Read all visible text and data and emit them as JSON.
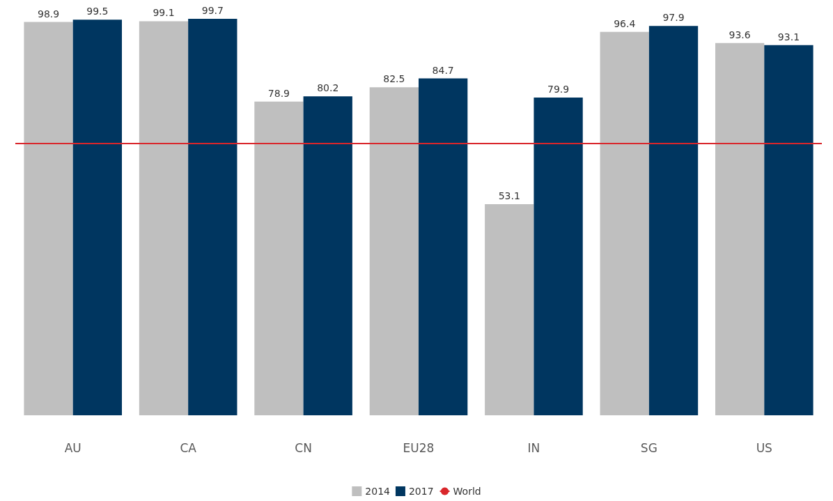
{
  "chart_data": {
    "type": "bar",
    "categories": [
      "AU",
      "CA",
      "CN",
      "EU28",
      "IN",
      "SG",
      "US"
    ],
    "series": [
      {
        "name": "2014",
        "color": "#bfbfbf",
        "values": [
          98.9,
          99.1,
          78.9,
          82.5,
          53.1,
          96.4,
          93.6
        ]
      },
      {
        "name": "2017",
        "color": "#003660",
        "values": [
          99.5,
          99.7,
          80.2,
          84.7,
          79.9,
          97.9,
          93.1
        ]
      }
    ],
    "data_labels": true,
    "tick_labels": "x",
    "legend": "bottom",
    "ref_lines": [
      {
        "axis": "y",
        "value": 68.4,
        "label": "World",
        "color": "#d9262b",
        "line_style": "solid"
      }
    ]
  }
}
